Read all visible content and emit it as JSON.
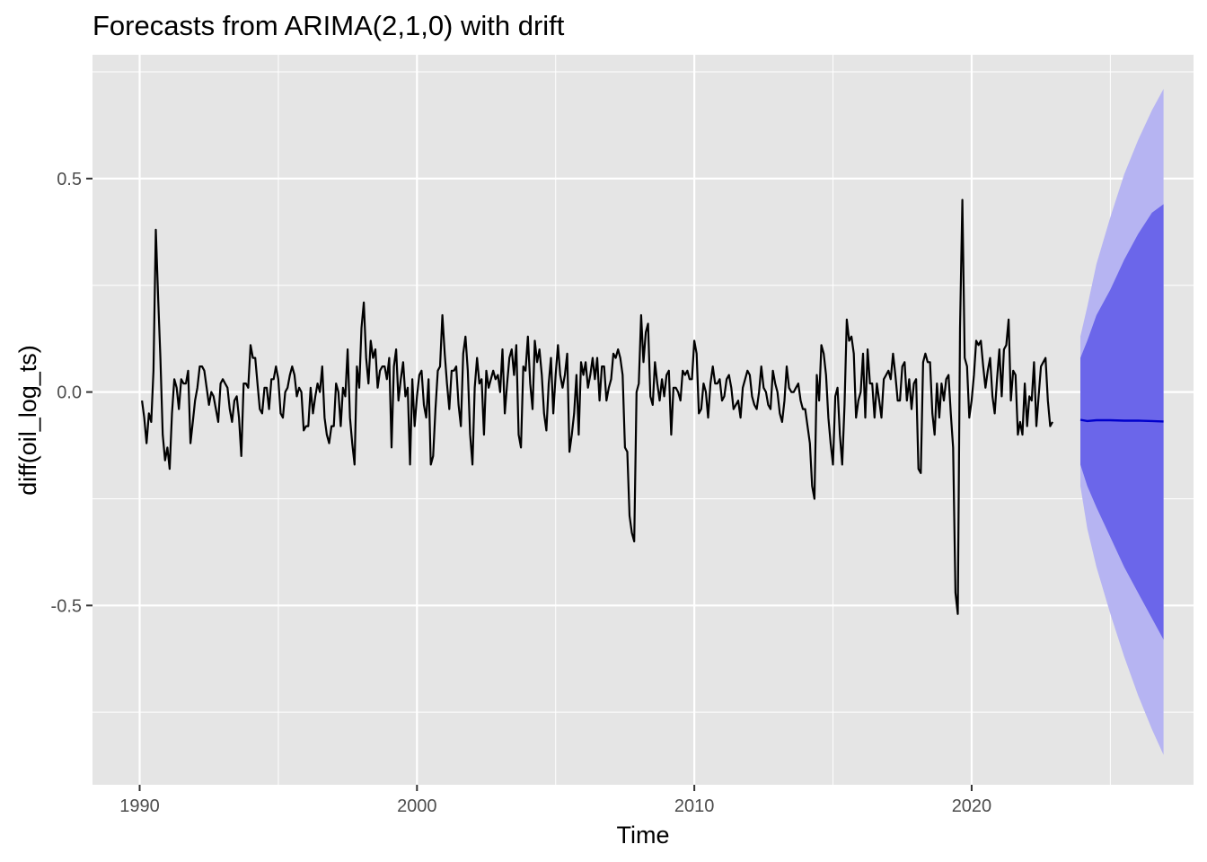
{
  "chart_data": {
    "type": "line",
    "title": "Forecasts from ARIMA(2,1,0) with drift",
    "xlabel": "Time",
    "ylabel": "diff(oil_log_ts)",
    "xlim": [
      1988.3,
      2028.0
    ],
    "ylim": [
      -0.92,
      0.79
    ],
    "x_ticks": [
      1990,
      2000,
      2010,
      2020
    ],
    "x_tick_labels": [
      "1990",
      "2000",
      "2010",
      "2020"
    ],
    "x_minor_ticks": [
      1995,
      2005,
      2015,
      2025
    ],
    "y_ticks": [
      -0.5,
      0.0,
      0.5
    ],
    "y_tick_labels": [
      "-0.5",
      "0.0",
      "0.5"
    ],
    "y_minor_ticks": [
      -0.75,
      -0.25,
      0.25,
      0.75
    ],
    "grid": true,
    "colors": {
      "panel": "#e5e5e5",
      "grid": "#ffffff",
      "series": "#000000",
      "forecast": "#0000cc",
      "pi80": "#6b66ea",
      "pi95": "#b6b4f2"
    },
    "series": [
      {
        "start": 1990.083,
        "step": 0.08333,
        "values": [
          -0.02,
          -0.06,
          -0.12,
          -0.05,
          -0.07,
          0.05,
          0.38,
          0.22,
          0.08,
          -0.1,
          -0.16,
          -0.13,
          -0.18,
          -0.05,
          0.03,
          0.01,
          -0.04,
          0.03,
          0.02,
          0.02,
          0.05,
          -0.12,
          -0.07,
          -0.02,
          0.01,
          0.06,
          0.06,
          0.05,
          0.01,
          -0.03,
          0.0,
          -0.01,
          -0.04,
          -0.07,
          0.02,
          0.03,
          0.02,
          0.01,
          -0.04,
          -0.07,
          -0.02,
          -0.01,
          -0.06,
          -0.15,
          0.02,
          0.02,
          0.01,
          0.11,
          0.08,
          0.08,
          0.02,
          -0.04,
          -0.05,
          0.01,
          0.01,
          -0.04,
          0.03,
          0.03,
          0.06,
          0.03,
          -0.05,
          -0.06,
          0.0,
          0.01,
          0.04,
          0.06,
          0.04,
          -0.01,
          0.01,
          0.0,
          -0.09,
          -0.08,
          -0.08,
          0.01,
          -0.05,
          -0.01,
          0.02,
          0.0,
          0.06,
          -0.06,
          -0.1,
          -0.12,
          -0.08,
          -0.08,
          0.02,
          0.0,
          -0.08,
          0.01,
          -0.01,
          0.1,
          -0.06,
          -0.12,
          -0.17,
          0.06,
          0.01,
          0.15,
          0.21,
          0.08,
          0.02,
          0.12,
          0.08,
          0.1,
          0.01,
          0.05,
          0.06,
          0.06,
          0.03,
          0.08,
          -0.13,
          0.06,
          0.1,
          -0.02,
          0.03,
          0.07,
          -0.01,
          0.01,
          -0.17,
          0.03,
          -0.08,
          -0.01,
          0.04,
          0.05,
          -0.03,
          -0.06,
          0.03,
          -0.17,
          -0.15,
          -0.04,
          0.05,
          0.06,
          0.18,
          0.09,
          0.02,
          -0.04,
          0.05,
          0.05,
          0.06,
          -0.03,
          -0.08,
          0.09,
          0.13,
          0.05,
          -0.1,
          -0.17,
          0.01,
          0.08,
          0.02,
          0.03,
          -0.1,
          0.05,
          0.01,
          0.03,
          0.05,
          0.03,
          0.04,
          0.0,
          0.1,
          -0.05,
          0.02,
          0.08,
          0.1,
          0.04,
          0.11,
          -0.1,
          -0.13,
          0.06,
          0.05,
          0.13,
          0.02,
          -0.04,
          0.12,
          0.07,
          0.1,
          0.04,
          -0.05,
          -0.09,
          0.02,
          0.08,
          -0.05,
          0.04,
          0.11,
          0.04,
          0.01,
          0.04,
          0.09,
          -0.14,
          -0.1,
          -0.05,
          0.04,
          -0.1,
          0.07,
          0.04,
          0.07,
          0.01,
          0.04,
          0.08,
          0.03,
          0.08,
          -0.02,
          0.06,
          0.06,
          -0.02,
          0.01,
          0.03,
          0.09,
          0.08,
          0.1,
          0.08,
          0.04,
          -0.13,
          -0.14,
          -0.29,
          -0.33,
          -0.35,
          0.0,
          0.02,
          0.18,
          0.07,
          0.14,
          0.16,
          -0.01,
          -0.03,
          0.07,
          0.02,
          -0.02,
          0.03,
          -0.01,
          0.04,
          0.05,
          -0.1,
          0.01,
          0.01,
          0.0,
          -0.02,
          0.05,
          0.04,
          0.05,
          0.03,
          0.03,
          0.12,
          0.09,
          -0.05,
          -0.04,
          0.02,
          0.0,
          -0.06,
          0.02,
          0.06,
          0.02,
          0.02,
          0.03,
          -0.02,
          -0.01,
          0.03,
          0.04,
          0.01,
          -0.04,
          -0.03,
          -0.02,
          -0.06,
          0.01,
          0.03,
          0.05,
          0.04,
          -0.01,
          -0.03,
          -0.04,
          0.0,
          0.06,
          0.01,
          0.0,
          -0.03,
          -0.04,
          0.05,
          0.02,
          0.0,
          -0.05,
          -0.07,
          -0.02,
          0.06,
          0.01,
          0.0,
          0.0,
          0.01,
          0.02,
          -0.02,
          -0.04,
          -0.04,
          -0.08,
          -0.12,
          -0.22,
          -0.25,
          0.04,
          -0.02,
          0.11,
          0.09,
          0.04,
          -0.06,
          -0.12,
          -0.17,
          -0.01,
          0.01,
          -0.1,
          -0.17,
          -0.03,
          0.17,
          0.12,
          0.13,
          0.09,
          -0.06,
          -0.02,
          0.0,
          0.09,
          -0.06,
          0.1,
          0.02,
          0.02,
          -0.06,
          0.02,
          -0.02,
          -0.06,
          0.03,
          0.04,
          0.05,
          0.03,
          0.09,
          0.04,
          -0.02,
          -0.02,
          0.06,
          0.07,
          -0.02,
          0.03,
          -0.04,
          0.02,
          0.03,
          -0.18,
          -0.19,
          0.07,
          0.09,
          0.07,
          0.07,
          -0.05,
          -0.1,
          0.02,
          -0.06,
          0.02,
          -0.02,
          0.03,
          0.04,
          -0.05,
          -0.13,
          -0.47,
          -0.52,
          0.15,
          0.45,
          0.08,
          0.06,
          -0.06,
          -0.02,
          0.04,
          0.12,
          0.11,
          0.12,
          0.06,
          0.01,
          0.05,
          0.08,
          -0.01,
          -0.05,
          0.03,
          0.1,
          -0.01,
          0.1,
          0.11,
          0.17,
          -0.02,
          0.05,
          0.04,
          -0.1,
          -0.07,
          -0.1,
          0.02,
          -0.08,
          -0.01,
          -0.02,
          0.07,
          -0.08,
          -0.01,
          0.06,
          0.07,
          0.08,
          -0.02,
          -0.08,
          -0.07
        ]
      }
    ],
    "forecast": {
      "x": [
        2023.92,
        2024.17,
        2024.5,
        2025.0,
        2025.5,
        2026.0,
        2026.5,
        2026.92
      ],
      "mean": [
        -0.065,
        -0.068,
        -0.066,
        -0.066,
        -0.067,
        -0.067,
        -0.068,
        -0.069
      ],
      "lo80": [
        -0.17,
        -0.22,
        -0.27,
        -0.34,
        -0.41,
        -0.47,
        -0.53,
        -0.58
      ],
      "hi80": [
        0.08,
        0.12,
        0.18,
        0.24,
        0.31,
        0.37,
        0.42,
        0.44
      ],
      "lo95": [
        -0.22,
        -0.32,
        -0.41,
        -0.52,
        -0.62,
        -0.71,
        -0.79,
        -0.85
      ],
      "hi95": [
        0.13,
        0.2,
        0.3,
        0.41,
        0.51,
        0.59,
        0.66,
        0.71
      ]
    }
  }
}
